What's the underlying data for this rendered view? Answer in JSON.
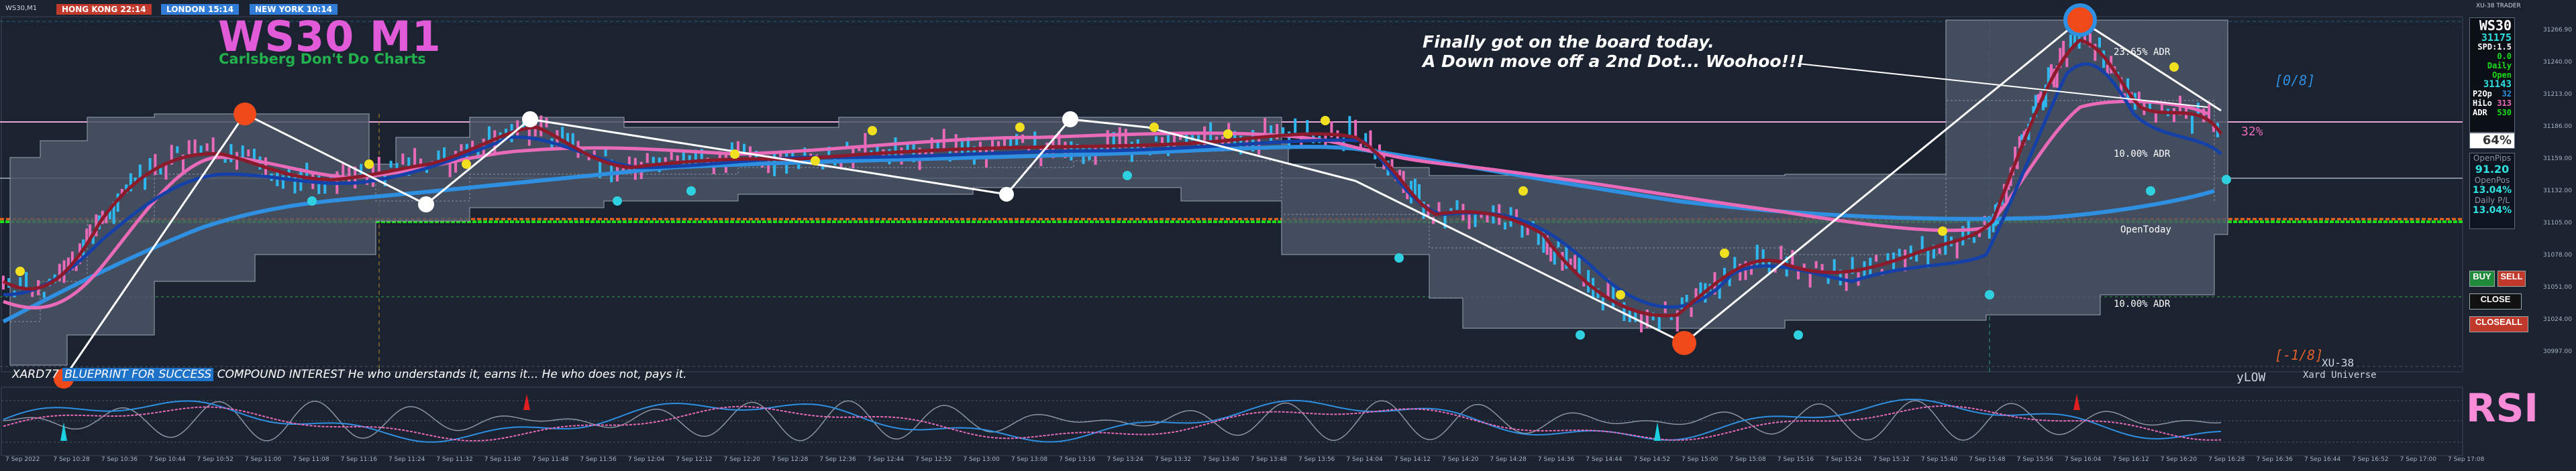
{
  "window": {
    "symbol_tag": "WS30,M1",
    "corner_tag": "XU-38 TRADER"
  },
  "sessions": [
    {
      "label": "HONG KONG 22:14",
      "color": "#c0392b"
    },
    {
      "label": "LONDON 15:14",
      "color": "#2f7bd6"
    },
    {
      "label": "NEW YORK 10:14",
      "color": "#2f7bd6"
    }
  ],
  "title": {
    "main": "WS30 M1",
    "sub": "Carlsberg Don't Do Charts"
  },
  "note": {
    "line1": "Finally got on the board today.",
    "line2": "A Down move off a 2nd Dot... Woohoo!!!"
  },
  "levels": {
    "top": "[0/8]",
    "pct_right": "32%",
    "adr_top": "23.65% ADR",
    "adr_mid": "10.00% ADR",
    "adr_low": "10.00% ADR",
    "open_today": "OpenToday",
    "bottom": "[-1/8]",
    "ylow": "yLOW",
    "xu38": "XU-38",
    "xard_universe": "Xard Universe"
  },
  "ticker": {
    "pre": "XARD77",
    "highlight": "BLUEPRINT FOR SUCCESS",
    "post": "COMPOUND INTEREST  He who understands it, earns it... He who does not, pays it."
  },
  "info_panel": {
    "symbol": "WS30",
    "price": "31175",
    "spd": "SPD:1.5",
    "zero": "0.0",
    "daily_open_label": "Daily Open",
    "daily_open": "31143",
    "p2op_label": "P2Op",
    "p2op": "32",
    "hilo_label": "HiLo",
    "hilo": "313",
    "adr_label": "ADR",
    "adr": "530",
    "pct": "64%",
    "open_pips_label": "OpenPips",
    "open_pips": "91.20",
    "open_pos_label": "OpenPos",
    "open_pos": "13.04%",
    "daily_pl_label": "Daily P/L",
    "daily_pl": "13.04%"
  },
  "buttons": {
    "buy": "BUY",
    "sell": "SELL",
    "close": "CLOSE",
    "close_all": "CLOSEALL"
  },
  "rsi": {
    "label": "RSI"
  },
  "price_scale": [
    "31266.90",
    "31240.00",
    "31213.00",
    "31186.00",
    "31159.00",
    "31132.00",
    "31105.00",
    "31078.00",
    "31051.00",
    "31024.00",
    "30997.00"
  ],
  "time_axis": [
    "7 Sep 2022",
    "7 Sep 10:28",
    "7 Sep 10:36",
    "7 Sep 10:44",
    "7 Sep 10:52",
    "7 Sep 11:00",
    "7 Sep 11:08",
    "7 Sep 11:16",
    "7 Sep 11:24",
    "7 Sep 11:32",
    "7 Sep 11:40",
    "7 Sep 11:48",
    "7 Sep 11:56",
    "7 Sep 12:04",
    "7 Sep 12:12",
    "7 Sep 12:20",
    "7 Sep 12:28",
    "7 Sep 12:36",
    "7 Sep 12:44",
    "7 Sep 12:52",
    "7 Sep 13:00",
    "7 Sep 13:08",
    "7 Sep 13:16",
    "7 Sep 13:24",
    "7 Sep 13:32",
    "7 Sep 13:40",
    "7 Sep 13:48",
    "7 Sep 13:56",
    "7 Sep 14:04",
    "7 Sep 14:12",
    "7 Sep 14:20",
    "7 Sep 14:28",
    "7 Sep 14:36",
    "7 Sep 14:44",
    "7 Sep 14:52",
    "7 Sep 15:00",
    "7 Sep 15:08",
    "7 Sep 15:16",
    "7 Sep 15:24",
    "7 Sep 15:32",
    "7 Sep 15:40",
    "7 Sep 15:48",
    "7 Sep 15:56",
    "7 Sep 16:04",
    "7 Sep 16:12",
    "7 Sep 16:20",
    "7 Sep 16:28",
    "7 Sep 16:36",
    "7 Sep 16:44",
    "7 Sep 16:52",
    "7 Sep 17:00",
    "7 Sep 17:08"
  ],
  "colors": {
    "bg": "#1b2230",
    "ema_fast": "#8b1a2a",
    "ema_mid": "#1040a0",
    "ema_slow": "#2f8fe0",
    "pink": "#e86ab8",
    "band": "#4a5566"
  }
}
